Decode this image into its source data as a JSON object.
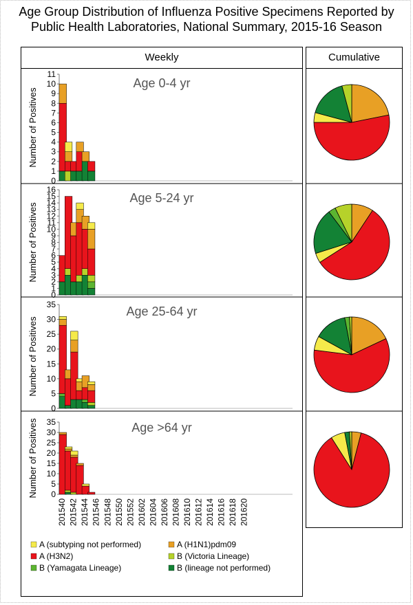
{
  "title_line1": "Age Group Distribution of Influenza Positive Specimens Reported by",
  "title_line2": "Public Health Laboratories, National Summary,  2015-16 Season",
  "weekly_header": "Weekly",
  "cumulative_header": "Cumulative",
  "y_axis_label": "Number of Positives",
  "colors": {
    "a_not_subtyped": "#f5ea4a",
    "a_h1n1": "#e8a025",
    "a_h3n2": "#e8141c",
    "b_victoria": "#b6d22a",
    "b_yamagata": "#5cb531",
    "b_not_performed": "#138235"
  },
  "legend": [
    {
      "label": "A (subtyping not performed)",
      "color": "#f5ea4a"
    },
    {
      "label": "A (H1N1)pdm09",
      "color": "#e8a025"
    },
    {
      "label": "A (H3N2)",
      "color": "#e8141c"
    },
    {
      "label": "B (Victoria Lineage)",
      "color": "#b6d22a"
    },
    {
      "label": "B (Yamagata Lineage)",
      "color": "#5cb531"
    },
    {
      "label": "B (lineage not performed)",
      "color": "#138235"
    }
  ],
  "chart_data": [
    {
      "type": "bar",
      "stacked": true,
      "title": "Age 0-4 yr",
      "ylabel": "Number of Positives",
      "ylim": [
        0,
        11
      ],
      "yticks": [
        0,
        1,
        2,
        3,
        4,
        5,
        6,
        7,
        8,
        9,
        10,
        11
      ],
      "categories": [
        "201540",
        "201541",
        "201542",
        "201543",
        "201544",
        "201545"
      ],
      "series": [
        {
          "name": "B (lineage not performed)",
          "values": [
            1,
            0,
            1,
            1,
            2,
            1
          ]
        },
        {
          "name": "B (Yamagata Lineage)",
          "values": [
            0,
            0,
            0,
            0,
            0,
            0
          ]
        },
        {
          "name": "B (Victoria Lineage)",
          "values": [
            0,
            1,
            0,
            0,
            0,
            0
          ]
        },
        {
          "name": "A (H3N2)",
          "values": [
            7,
            1,
            1,
            2,
            0,
            1
          ]
        },
        {
          "name": "A (H1N1)pdm09",
          "values": [
            2,
            1,
            0,
            1,
            1,
            0
          ]
        },
        {
          "name": "A (subtyping not performed)",
          "values": [
            0,
            1,
            0,
            0,
            0,
            0
          ]
        }
      ]
    },
    {
      "type": "bar",
      "stacked": true,
      "title": "Age 5-24 yr",
      "ylabel": "Number of Positives",
      "ylim": [
        0,
        16
      ],
      "yticks": [
        0,
        1,
        2,
        3,
        4,
        5,
        6,
        7,
        8,
        9,
        10,
        11,
        12,
        13,
        14,
        15,
        16
      ],
      "categories": [
        "201540",
        "201541",
        "201542",
        "201543",
        "201544",
        "201545"
      ],
      "series": [
        {
          "name": "B (lineage not performed)",
          "values": [
            2,
            3,
            2,
            2,
            3,
            1
          ]
        },
        {
          "name": "B (Yamagata Lineage)",
          "values": [
            0,
            0,
            0,
            0,
            0,
            1
          ]
        },
        {
          "name": "B (Victoria Lineage)",
          "values": [
            0,
            1,
            0,
            1,
            1,
            1
          ]
        },
        {
          "name": "A (H3N2)",
          "values": [
            4,
            11,
            7,
            8,
            6,
            4
          ]
        },
        {
          "name": "A (H1N1)pdm09",
          "values": [
            0,
            0,
            2,
            2,
            2,
            3
          ]
        },
        {
          "name": "A (subtyping not performed)",
          "values": [
            0,
            0,
            0,
            1,
            0,
            1
          ]
        }
      ]
    },
    {
      "type": "bar",
      "stacked": true,
      "title": "Age 25-64 yr",
      "ylabel": "Number of Positives",
      "ylim": [
        0,
        35
      ],
      "yticks": [
        0,
        5,
        10,
        15,
        20,
        25,
        30,
        35
      ],
      "categories": [
        "201540",
        "201541",
        "201542",
        "201543",
        "201544",
        "201545"
      ],
      "series": [
        {
          "name": "B (lineage not performed)",
          "values": [
            4,
            1,
            3,
            3,
            2,
            1
          ]
        },
        {
          "name": "B (Yamagata Lineage)",
          "values": [
            1,
            0,
            0,
            0,
            1,
            0
          ]
        },
        {
          "name": "B (Victoria Lineage)",
          "values": [
            0,
            0,
            0,
            0,
            0,
            1
          ]
        },
        {
          "name": "A (H3N2)",
          "values": [
            23,
            9,
            16,
            3,
            4,
            4
          ]
        },
        {
          "name": "A (H1N1)pdm09",
          "values": [
            2,
            3,
            4,
            3,
            4,
            2
          ]
        },
        {
          "name": "A (subtyping not performed)",
          "values": [
            1,
            0,
            3,
            1,
            0,
            1
          ]
        }
      ]
    },
    {
      "type": "bar",
      "stacked": true,
      "title": "Age >64 yr",
      "ylabel": "Number of Positives",
      "ylim": [
        0,
        35
      ],
      "yticks": [
        0,
        5,
        10,
        15,
        20,
        25,
        30,
        35
      ],
      "categories": [
        "201540",
        "201541",
        "201542",
        "201543",
        "201544",
        "201545"
      ],
      "series": [
        {
          "name": "B (lineage not performed)",
          "values": [
            0,
            1,
            0,
            0,
            0,
            0
          ]
        },
        {
          "name": "B (Yamagata Lineage)",
          "values": [
            0,
            0,
            0,
            0,
            0,
            0
          ]
        },
        {
          "name": "B (Victoria Lineage)",
          "values": [
            0,
            1,
            1,
            0,
            0,
            0
          ]
        },
        {
          "name": "A (H3N2)",
          "values": [
            29,
            19,
            17,
            14,
            4,
            1
          ]
        },
        {
          "name": "A (H1N1)pdm09",
          "values": [
            1,
            1,
            1,
            1,
            0,
            0
          ]
        },
        {
          "name": "A (subtyping not performed)",
          "values": [
            0,
            1,
            2,
            0,
            1,
            0
          ]
        }
      ]
    },
    {
      "type": "pie",
      "title": "Cumulative Age 0-4 yr",
      "labels": [
        "A (H1N1)pdm09",
        "A (H3N2)",
        "A (subtyping not performed)",
        "B (lineage not performed)",
        "B (Yamagata Lineage)",
        "B (Victoria Lineage)"
      ],
      "values": [
        21,
        51,
        4,
        16,
        0,
        4
      ]
    },
    {
      "type": "pie",
      "title": "Cumulative Age 5-24 yr",
      "labels": [
        "A (H1N1)pdm09",
        "A (H3N2)",
        "A (subtyping not performed)",
        "B (lineage not performed)",
        "B (Yamagata Lineage)",
        "B (Victoria Lineage)"
      ],
      "values": [
        9,
        55,
        4,
        19,
        3,
        7
      ]
    },
    {
      "type": "pie",
      "title": "Cumulative Age 25-64 yr",
      "labels": [
        "A (H1N1)pdm09",
        "A (H3N2)",
        "A (subtyping not performed)",
        "B (lineage not performed)",
        "B (Yamagata Lineage)",
        "B (Victoria Lineage)"
      ],
      "values": [
        18,
        59,
        6,
        14,
        2,
        1
      ]
    },
    {
      "type": "pie",
      "title": "Cumulative Age >64 yr",
      "labels": [
        "A (H1N1)pdm09",
        "A (H3N2)",
        "A (subtyping not performed)",
        "B (lineage not performed)",
        "B (Yamagata Lineage)",
        "B (Victoria Lineage)"
      ],
      "values": [
        4,
        87,
        6,
        2,
        0,
        1
      ]
    }
  ],
  "x_tick_labels": [
    "201540",
    "201542",
    "201544",
    "201546",
    "201548",
    "201550",
    "201552",
    "201602",
    "201604",
    "201606",
    "201608",
    "201610",
    "201612",
    "201614",
    "201616",
    "201618",
    "201620"
  ]
}
